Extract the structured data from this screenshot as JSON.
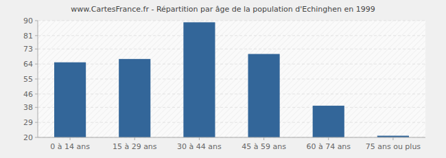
{
  "chart_data": {
    "type": "bar",
    "title": "www.CartesFrance.fr - Répartition par âge de la population d'Echinghen en 1999",
    "categories": [
      "0 à 14 ans",
      "15 à 29 ans",
      "30 à 44 ans",
      "45 à 59 ans",
      "60 à 74 ans",
      "75 ans ou plus"
    ],
    "values": [
      65,
      67,
      89,
      70,
      39,
      21
    ],
    "color": "#336699",
    "ylim": [
      20,
      90
    ],
    "yticks": [
      20,
      29,
      38,
      46,
      55,
      64,
      73,
      81,
      90
    ],
    "grid": true
  }
}
